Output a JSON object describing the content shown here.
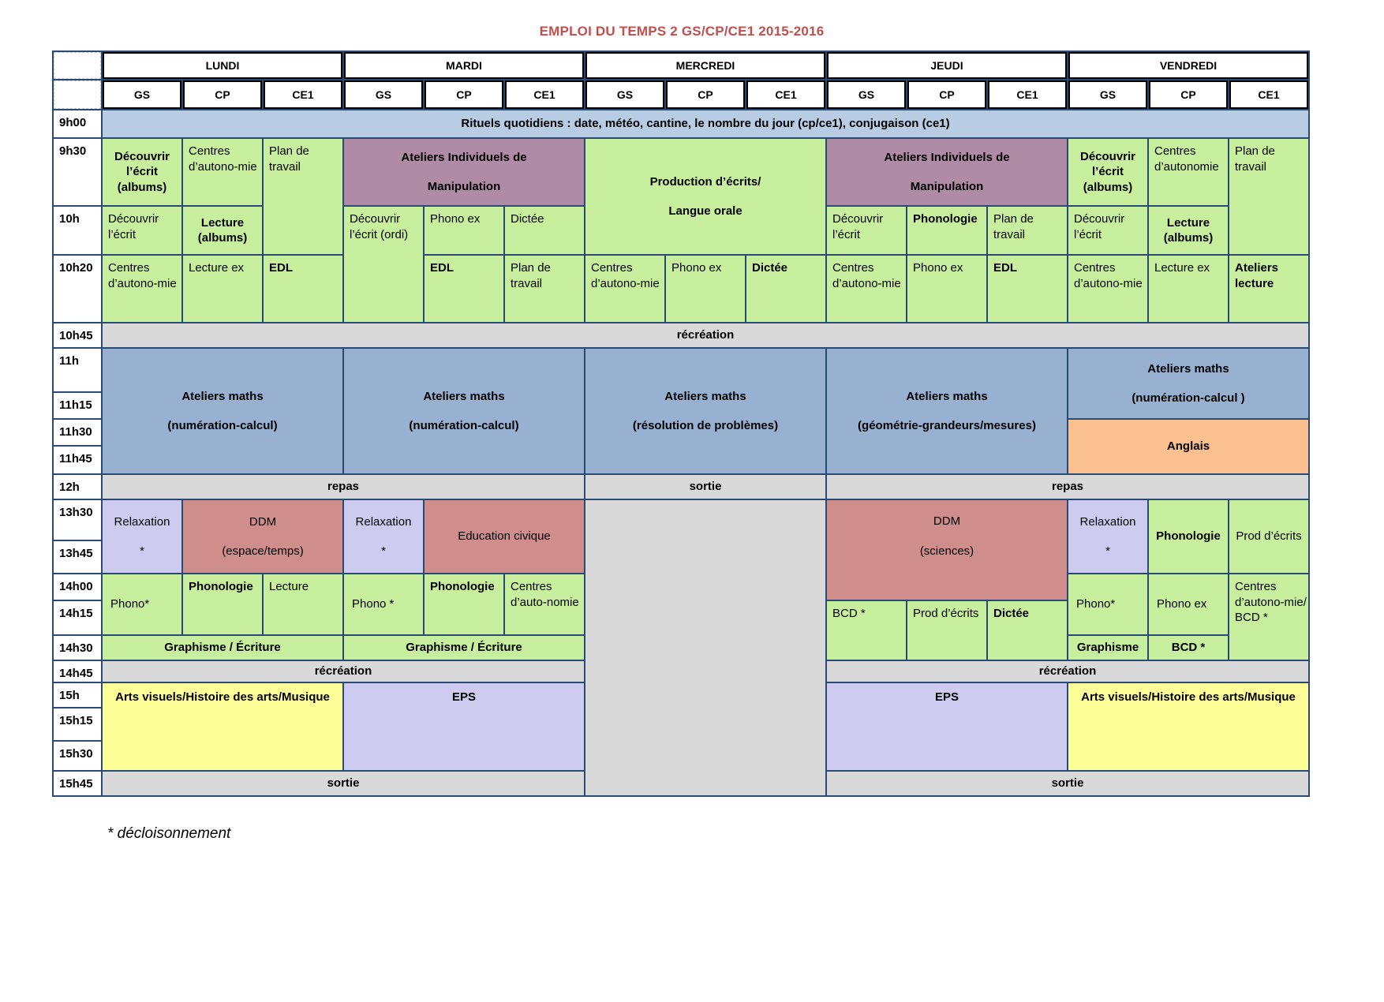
{
  "title": "EMPLOI DU TEMPS 2 GS/CP/CE1 2015-2016",
  "footnote": "* décloisonnement",
  "colors": {
    "g": "#c7ef9d",
    "p": "#b08ba6",
    "bl": "#99b1d1",
    "lb": "#b8cce4",
    "gr": "#d9d9d9",
    "lv": "#cdccf0",
    "r": "#cf8d8b",
    "o": "#fac090",
    "y": "#ffff99",
    "hd": "#ffffff",
    "hd2": "#ffffff",
    "tm": "#ffffff",
    "dash": "#ffffff",
    "grid_line": "#2a4a73",
    "title_red": "#c0504d"
  },
  "days": [
    "LUNDI",
    "MARDI",
    "MERCREDI",
    "JEUDI",
    "VENDREDI"
  ],
  "groups": [
    "GS",
    "CP",
    "CE1"
  ],
  "times": [
    "9h00",
    "9h30",
    "10h",
    "10h20",
    "10h45",
    "11h",
    "11h15",
    "11h30",
    "11h45",
    "12h",
    "13h30",
    "13h45",
    "14h00",
    "14h15",
    "14h30",
    "14h45",
    "15h",
    "15h15",
    "15h30",
    "15h45"
  ],
  "cells": [
    {
      "i": "corner-top",
      "t": "",
      "c": 1,
      "r": 1,
      "k": "dash",
      "a": "c"
    },
    {
      "i": "corner-sub",
      "t": "",
      "c": 1,
      "r": 2,
      "k": "dash",
      "a": "c"
    },
    {
      "i": "day-lundi",
      "t": "LUNDI",
      "c": 2,
      "w": 3,
      "r": 1,
      "k": "hd",
      "a": "c",
      "b": 1
    },
    {
      "i": "day-mardi",
      "t": "MARDI",
      "c": 5,
      "w": 3,
      "r": 1,
      "k": "hd",
      "a": "c",
      "b": 1
    },
    {
      "i": "day-mercredi",
      "t": "MERCREDI",
      "c": 8,
      "w": 3,
      "r": 1,
      "k": "hd",
      "a": "c",
      "b": 1
    },
    {
      "i": "day-jeudi",
      "t": "JEUDI",
      "c": 11,
      "w": 3,
      "r": 1,
      "k": "hd",
      "a": "c",
      "b": 1
    },
    {
      "i": "day-vendredi",
      "t": "VENDREDI",
      "c": 14,
      "w": 3,
      "r": 1,
      "k": "hd",
      "a": "c",
      "b": 1
    },
    {
      "i": "grp-lu-gs",
      "t": "GS",
      "c": 2,
      "r": 2,
      "k": "hd2",
      "a": "c",
      "b": 1
    },
    {
      "i": "grp-lu-cp",
      "t": "CP",
      "c": 3,
      "r": 2,
      "k": "hd2",
      "a": "c",
      "b": 1
    },
    {
      "i": "grp-lu-ce1",
      "t": "CE1",
      "c": 4,
      "r": 2,
      "k": "hd2",
      "a": "c",
      "b": 1
    },
    {
      "i": "grp-ma-gs",
      "t": "GS",
      "c": 5,
      "r": 2,
      "k": "hd2",
      "a": "c",
      "b": 1
    },
    {
      "i": "grp-ma-cp",
      "t": "CP",
      "c": 6,
      "r": 2,
      "k": "hd2",
      "a": "c",
      "b": 1
    },
    {
      "i": "grp-ma-ce1",
      "t": "CE1",
      "c": 7,
      "r": 2,
      "k": "hd2",
      "a": "c",
      "b": 1
    },
    {
      "i": "grp-me-gs",
      "t": "GS",
      "c": 8,
      "r": 2,
      "k": "hd2",
      "a": "c",
      "b": 1
    },
    {
      "i": "grp-me-cp",
      "t": "CP",
      "c": 9,
      "r": 2,
      "k": "hd2",
      "a": "c",
      "b": 1
    },
    {
      "i": "grp-me-ce1",
      "t": "CE1",
      "c": 10,
      "r": 2,
      "k": "hd2",
      "a": "c",
      "b": 1
    },
    {
      "i": "grp-je-gs",
      "t": "GS",
      "c": 11,
      "r": 2,
      "k": "hd2",
      "a": "c",
      "b": 1
    },
    {
      "i": "grp-je-cp",
      "t": "CP",
      "c": 12,
      "r": 2,
      "k": "hd2",
      "a": "c",
      "b": 1
    },
    {
      "i": "grp-je-ce1",
      "t": "CE1",
      "c": 13,
      "r": 2,
      "k": "hd2",
      "a": "c",
      "b": 1
    },
    {
      "i": "grp-ve-gs",
      "t": "GS",
      "c": 14,
      "r": 2,
      "k": "hd2",
      "a": "c",
      "b": 1
    },
    {
      "i": "grp-ve-cp",
      "t": "CP",
      "c": 15,
      "r": 2,
      "k": "hd2",
      "a": "c",
      "b": 1
    },
    {
      "i": "grp-ve-ce1",
      "t": "CE1",
      "c": 16,
      "r": 2,
      "k": "hd2",
      "a": "c",
      "b": 1
    },
    {
      "i": "time-9h00",
      "t": "9h00",
      "c": 1,
      "r": 3,
      "k": "tm",
      "a": "lt",
      "b": 1
    },
    {
      "i": "time-9h30",
      "t": "9h30",
      "c": 1,
      "r": 4,
      "k": "tm",
      "a": "lt",
      "b": 1
    },
    {
      "i": "time-10h",
      "t": "10h",
      "c": 1,
      "r": 5,
      "k": "tm",
      "a": "lt",
      "b": 1
    },
    {
      "i": "time-10h20",
      "t": "10h20",
      "c": 1,
      "r": 6,
      "k": "tm",
      "a": "lt",
      "b": 1
    },
    {
      "i": "time-10h45",
      "t": "10h45",
      "c": 1,
      "r": 7,
      "k": "tm",
      "a": "lt",
      "b": 1
    },
    {
      "i": "time-11h",
      "t": "11h",
      "c": 1,
      "r": 8,
      "k": "tm",
      "a": "lt",
      "b": 1
    },
    {
      "i": "time-11h15",
      "t": "11h15",
      "c": 1,
      "r": 9,
      "k": "tm",
      "a": "lt",
      "b": 1
    },
    {
      "i": "time-11h30",
      "t": "11h30",
      "c": 1,
      "r": 10,
      "k": "tm",
      "a": "lt",
      "b": 1
    },
    {
      "i": "time-11h45",
      "t": "11h45",
      "c": 1,
      "r": 11,
      "k": "tm",
      "a": "lt",
      "b": 1
    },
    {
      "i": "time-12h",
      "t": "12h",
      "c": 1,
      "r": 12,
      "k": "tm",
      "a": "lt",
      "b": 1
    },
    {
      "i": "time-13h30",
      "t": "13h30",
      "c": 1,
      "r": 13,
      "k": "tm",
      "a": "lt",
      "b": 1
    },
    {
      "i": "time-13h45",
      "t": "13h45",
      "c": 1,
      "r": 14,
      "k": "tm",
      "a": "lt",
      "b": 1
    },
    {
      "i": "time-14h00",
      "t": "14h00",
      "c": 1,
      "r": 15,
      "k": "tm",
      "a": "lt",
      "b": 1
    },
    {
      "i": "time-14h15",
      "t": "14h15",
      "c": 1,
      "r": 16,
      "k": "tm",
      "a": "lt",
      "b": 1
    },
    {
      "i": "time-14h30",
      "t": "14h30",
      "c": 1,
      "r": 17,
      "k": "tm",
      "a": "lt",
      "b": 1
    },
    {
      "i": "time-14h45",
      "t": "14h45",
      "c": 1,
      "r": 18,
      "k": "tm",
      "a": "lt",
      "b": 1
    },
    {
      "i": "time-15h",
      "t": "15h",
      "c": 1,
      "r": 19,
      "k": "tm",
      "a": "lt",
      "b": 1
    },
    {
      "i": "time-15h15",
      "t": "15h15",
      "c": 1,
      "r": 20,
      "k": "tm",
      "a": "lt",
      "b": 1
    },
    {
      "i": "time-15h30",
      "t": "15h30",
      "c": 1,
      "r": 21,
      "k": "tm",
      "a": "lt",
      "b": 1
    },
    {
      "i": "time-15h45",
      "t": "15h45",
      "c": 1,
      "r": 22,
      "k": "tm",
      "a": "lt",
      "b": 1
    },
    {
      "i": "rituels",
      "t": "Rituels quotidiens : date, météo, cantine, le nombre du jour (cp/ce1), conjugaison (ce1)",
      "c": 2,
      "w": 15,
      "r": 3,
      "k": "lb",
      "a": "c",
      "b": 1
    },
    {
      "i": "lu-gs-930",
      "t": "Découvrir l’écrit (albums)",
      "c": 2,
      "r": 4,
      "k": "g",
      "a": "c",
      "b": 1
    },
    {
      "i": "lu-cp-930",
      "t": "Centres d’autono-mie",
      "c": 3,
      "r": 4,
      "k": "g",
      "a": "lt"
    },
    {
      "i": "lu-ce1-930",
      "t": "Plan de travail",
      "c": 4,
      "r": 4,
      "h": 2,
      "k": "g",
      "a": "lt"
    },
    {
      "i": "ma-ateliers-manip",
      "t": "Ateliers Individuels de\nManipulation",
      "c": 5,
      "w": 3,
      "r": 4,
      "k": "p",
      "a": "c",
      "b": 1,
      "m": 1
    },
    {
      "i": "me-production-ecrits",
      "t": "Production d’écrits/\nLangue orale",
      "c": 8,
      "w": 3,
      "r": 4,
      "h": 2,
      "k": "g",
      "a": "c",
      "b": 1,
      "m": 1
    },
    {
      "i": "je-ateliers-manip",
      "t": "Ateliers Individuels de\nManipulation",
      "c": 11,
      "w": 3,
      "r": 4,
      "k": "p",
      "a": "c",
      "b": 1,
      "m": 1
    },
    {
      "i": "ve-gs-930",
      "t": "Découvrir l’écrit (albums)",
      "c": 14,
      "r": 4,
      "k": "g",
      "a": "c",
      "b": 1
    },
    {
      "i": "ve-cp-930",
      "t": "Centres d’autonomie",
      "c": 15,
      "r": 4,
      "k": "g",
      "a": "lt"
    },
    {
      "i": "ve-ce1-930",
      "t": "Plan de travail",
      "c": 16,
      "r": 4,
      "h": 2,
      "k": "g",
      "a": "lt"
    },
    {
      "i": "lu-gs-10h",
      "t": "Découvrir l’écrit",
      "c": 2,
      "r": 5,
      "k": "g",
      "a": "lt"
    },
    {
      "i": "lu-cp-10h",
      "t": "Lecture (albums)",
      "c": 3,
      "r": 5,
      "k": "g",
      "a": "c",
      "b": 1
    },
    {
      "i": "ma-gs-10h",
      "t": "Découvrir l’écrit (ordi)",
      "c": 5,
      "r": 5,
      "h": 2,
      "k": "g",
      "a": "lt"
    },
    {
      "i": "ma-cp-10h",
      "t": "Phono ex",
      "c": 6,
      "r": 5,
      "k": "g",
      "a": "lt"
    },
    {
      "i": "ma-ce1-10h",
      "t": "Dictée",
      "c": 7,
      "r": 5,
      "k": "g",
      "a": "lt"
    },
    {
      "i": "je-gs-10h",
      "t": "Découvrir l’écrit",
      "c": 11,
      "r": 5,
      "k": "g",
      "a": "lt"
    },
    {
      "i": "je-cp-10h",
      "t": "Phonologie",
      "c": 12,
      "r": 5,
      "k": "g",
      "a": "lt",
      "b": 1
    },
    {
      "i": "je-ce1-10h",
      "t": "Plan de travail",
      "c": 13,
      "r": 5,
      "k": "g",
      "a": "lt"
    },
    {
      "i": "ve-gs-10h",
      "t": "Découvrir l’écrit",
      "c": 14,
      "r": 5,
      "k": "g",
      "a": "lt"
    },
    {
      "i": "ve-cp-10h",
      "t": "Lecture (albums)",
      "c": 15,
      "r": 5,
      "k": "g",
      "a": "c",
      "b": 1
    },
    {
      "i": "lu-gs-1020",
      "t": "Centres d’autono-mie",
      "c": 2,
      "r": 6,
      "k": "g",
      "a": "lt"
    },
    {
      "i": "lu-cp-1020",
      "t": "Lecture ex",
      "c": 3,
      "r": 6,
      "k": "g",
      "a": "lt"
    },
    {
      "i": "lu-ce1-1020",
      "t": "EDL",
      "c": 4,
      "r": 6,
      "k": "g",
      "a": "lt",
      "b": 1
    },
    {
      "i": "ma-cp-1020",
      "t": "EDL",
      "c": 6,
      "r": 6,
      "k": "g",
      "a": "lt",
      "b": 1
    },
    {
      "i": "ma-ce1-1020",
      "t": "Plan de travail",
      "c": 7,
      "r": 6,
      "k": "g",
      "a": "lt"
    },
    {
      "i": "me-gs-1020",
      "t": "Centres d’autono-mie",
      "c": 8,
      "r": 6,
      "k": "g",
      "a": "lt"
    },
    {
      "i": "me-cp-1020",
      "t": "Phono ex",
      "c": 9,
      "r": 6,
      "k": "g",
      "a": "lt"
    },
    {
      "i": "me-ce1-1020",
      "t": "Dictée",
      "c": 10,
      "r": 6,
      "k": "g",
      "a": "lt",
      "b": 1
    },
    {
      "i": "je-gs-1020",
      "t": "Centres d’autono-mie",
      "c": 11,
      "r": 6,
      "k": "g",
      "a": "lt"
    },
    {
      "i": "je-cp-1020",
      "t": "Phono ex",
      "c": 12,
      "r": 6,
      "k": "g",
      "a": "lt"
    },
    {
      "i": "je-ce1-1020",
      "t": "EDL",
      "c": 13,
      "r": 6,
      "k": "g",
      "a": "lt",
      "b": 1
    },
    {
      "i": "ve-gs-1020",
      "t": "Centres d’autono-mie",
      "c": 14,
      "r": 6,
      "k": "g",
      "a": "lt"
    },
    {
      "i": "ve-cp-1020",
      "t": "Lecture ex",
      "c": 15,
      "r": 6,
      "k": "g",
      "a": "lt"
    },
    {
      "i": "ve-ce1-1020",
      "t": "Ateliers lecture",
      "c": 16,
      "r": 6,
      "k": "g",
      "a": "lt",
      "b": 1
    },
    {
      "i": "recreation-1",
      "t": "récréation",
      "c": 2,
      "w": 15,
      "r": 7,
      "k": "gr",
      "a": "c",
      "b": 1
    },
    {
      "i": "maths-lundi",
      "t": "Ateliers maths\n(numération-calcul)",
      "c": 2,
      "w": 3,
      "r": 8,
      "h": 4,
      "k": "bl",
      "a": "c",
      "b": 1,
      "m": 1
    },
    {
      "i": "maths-mardi",
      "t": "Ateliers maths\n(numération-calcul)",
      "c": 5,
      "w": 3,
      "r": 8,
      "h": 4,
      "k": "bl",
      "a": "c",
      "b": 1,
      "m": 1
    },
    {
      "i": "maths-mercredi",
      "t": "Ateliers maths\n(résolution de problèmes)",
      "c": 8,
      "w": 3,
      "r": 8,
      "h": 4,
      "k": "bl",
      "a": "c",
      "b": 1,
      "m": 1
    },
    {
      "i": "maths-jeudi",
      "t": "Ateliers maths\n(géométrie-grandeurs/mesures)",
      "c": 11,
      "w": 3,
      "r": 8,
      "h": 4,
      "k": "bl",
      "a": "c",
      "b": 1,
      "m": 1
    },
    {
      "i": "maths-vendredi",
      "t": "Ateliers maths\n(numération-calcul )",
      "c": 14,
      "w": 3,
      "r": 8,
      "h": 2,
      "k": "bl",
      "a": "c",
      "b": 1,
      "m": 1
    },
    {
      "i": "anglais",
      "t": "Anglais",
      "c": 14,
      "w": 3,
      "r": 10,
      "h": 2,
      "k": "o",
      "a": "c",
      "b": 1
    },
    {
      "i": "repas-1",
      "t": "repas",
      "c": 2,
      "w": 6,
      "r": 12,
      "k": "gr",
      "a": "c",
      "b": 1
    },
    {
      "i": "sortie-mercredi",
      "t": "sortie",
      "c": 8,
      "w": 3,
      "r": 12,
      "k": "gr",
      "a": "c",
      "b": 1
    },
    {
      "i": "repas-2",
      "t": "repas",
      "c": 11,
      "w": 6,
      "r": 12,
      "k": "gr",
      "a": "c",
      "b": 1
    },
    {
      "i": "relax-lundi",
      "t": "Relaxation\n*",
      "c": 2,
      "r": 13,
      "h": 2,
      "k": "lv",
      "a": "c",
      "m": 1
    },
    {
      "i": "ddm-lundi",
      "t": "DDM\n(espace/temps)",
      "c": 3,
      "w": 2,
      "r": 13,
      "h": 2,
      "k": "r",
      "a": "c",
      "m": 1
    },
    {
      "i": "relax-mardi",
      "t": "Relaxation\n*",
      "c": 5,
      "r": 13,
      "h": 2,
      "k": "lv",
      "a": "c",
      "m": 1
    },
    {
      "i": "educ-civique-mardi",
      "t": "Education civique",
      "c": 6,
      "w": 2,
      "r": 13,
      "h": 2,
      "k": "r",
      "a": "c"
    },
    {
      "i": "mercredi-apresmidi-vide",
      "t": "",
      "c": 8,
      "w": 3,
      "r": 13,
      "h": 10,
      "k": "gr",
      "a": "c"
    },
    {
      "i": "ddm-jeudi",
      "t": "DDM\n(sciences)",
      "c": 11,
      "w": 3,
      "r": 13,
      "h": 3,
      "k": "r",
      "a": "ct",
      "m": 1
    },
    {
      "i": "relax-vendredi",
      "t": "Relaxation\n*",
      "c": 14,
      "r": 13,
      "h": 2,
      "k": "lv",
      "a": "c",
      "m": 1
    },
    {
      "i": "phonologie-vendredi",
      "t": "Phonologie",
      "c": 15,
      "r": 13,
      "h": 2,
      "k": "g",
      "a": "c",
      "b": 1
    },
    {
      "i": "prod-ecrits-vendredi",
      "t": "Prod d’écrits",
      "c": 16,
      "r": 13,
      "h": 2,
      "k": "g",
      "a": "c"
    },
    {
      "i": "phono-lundi",
      "t": "Phono*",
      "c": 2,
      "r": 15,
      "h": 2,
      "k": "g",
      "a": "lm"
    },
    {
      "i": "phonologie-lundi",
      "t": "Phonologie",
      "c": 3,
      "r": 15,
      "h": 2,
      "k": "g",
      "a": "lt",
      "b": 1
    },
    {
      "i": "lecture-lundi",
      "t": "Lecture",
      "c": 4,
      "r": 15,
      "h": 2,
      "k": "g",
      "a": "lt"
    },
    {
      "i": "phono-mardi",
      "t": "Phono *",
      "c": 5,
      "r": 15,
      "h": 2,
      "k": "g",
      "a": "lm"
    },
    {
      "i": "phonologie-mardi",
      "t": "Phonologie",
      "c": 6,
      "r": 15,
      "h": 2,
      "k": "g",
      "a": "lt",
      "b": 1
    },
    {
      "i": "centres-mardi",
      "t": "Centres d’auto-nomie",
      "c": 7,
      "r": 15,
      "h": 2,
      "k": "g",
      "a": "lt"
    },
    {
      "i": "bcd-jeudi",
      "t": "BCD *",
      "c": 11,
      "r": 16,
      "h": 2,
      "k": "g",
      "a": "lt"
    },
    {
      "i": "prod-ecrits-jeudi",
      "t": "Prod d’écrits",
      "c": 12,
      "r": 16,
      "h": 2,
      "k": "g",
      "a": "lt"
    },
    {
      "i": "dictee-jeudi",
      "t": "Dictée",
      "c": 13,
      "r": 16,
      "h": 2,
      "k": "g",
      "a": "lt",
      "b": 1
    },
    {
      "i": "phono-vendredi",
      "t": "Phono*",
      "c": 14,
      "r": 15,
      "h": 2,
      "k": "g",
      "a": "lm"
    },
    {
      "i": "phono-ex-vendredi",
      "t": "Phono ex",
      "c": 15,
      "r": 15,
      "h": 2,
      "k": "g",
      "a": "lm"
    },
    {
      "i": "centres-bcd-vendredi",
      "t": "Centres d’autono-mie/\nBCD *",
      "c": 16,
      "r": 15,
      "h": 3,
      "k": "g",
      "a": "lt"
    },
    {
      "i": "graphisme-lundi",
      "t": "Graphisme  / Écriture",
      "c": 2,
      "w": 3,
      "r": 17,
      "k": "g",
      "a": "c",
      "b": 1
    },
    {
      "i": "graphisme-mardi",
      "t": "Graphisme  / Écriture",
      "c": 5,
      "w": 3,
      "r": 17,
      "k": "g",
      "a": "c",
      "b": 1
    },
    {
      "i": "graphisme-vendredi",
      "t": "Graphisme",
      "c": 14,
      "r": 17,
      "k": "g",
      "a": "c",
      "b": 1
    },
    {
      "i": "bcd-vendredi",
      "t": "BCD *",
      "c": 15,
      "r": 17,
      "k": "g",
      "a": "c",
      "b": 1
    },
    {
      "i": "recreation-2",
      "t": "récréation",
      "c": 2,
      "w": 6,
      "r": 18,
      "k": "gr",
      "a": "c",
      "b": 1
    },
    {
      "i": "recreation-3",
      "t": "récréation",
      "c": 11,
      "w": 6,
      "r": 18,
      "k": "gr",
      "a": "c",
      "b": 1
    },
    {
      "i": "arts-lundi",
      "t": "Arts visuels/Histoire des arts/Musique",
      "c": 2,
      "w": 3,
      "r": 19,
      "h": 3,
      "k": "y",
      "a": "ct",
      "b": 1
    },
    {
      "i": "eps-mardi",
      "t": "EPS",
      "c": 5,
      "w": 3,
      "r": 19,
      "h": 3,
      "k": "lv",
      "a": "ct",
      "b": 1
    },
    {
      "i": "eps-jeudi",
      "t": "EPS",
      "c": 11,
      "w": 3,
      "r": 19,
      "h": 3,
      "k": "lv",
      "a": "ct",
      "b": 1
    },
    {
      "i": "arts-vendredi",
      "t": "Arts visuels/Histoire des arts/Musique",
      "c": 14,
      "w": 3,
      "r": 19,
      "h": 3,
      "k": "y",
      "a": "ct",
      "b": 1
    },
    {
      "i": "sortie-1",
      "t": "sortie",
      "c": 2,
      "w": 6,
      "r": 22,
      "k": "gr",
      "a": "c",
      "b": 1
    },
    {
      "i": "sortie-2",
      "t": "sortie",
      "c": 11,
      "w": 6,
      "r": 22,
      "k": "gr",
      "a": "c",
      "b": 1
    }
  ]
}
